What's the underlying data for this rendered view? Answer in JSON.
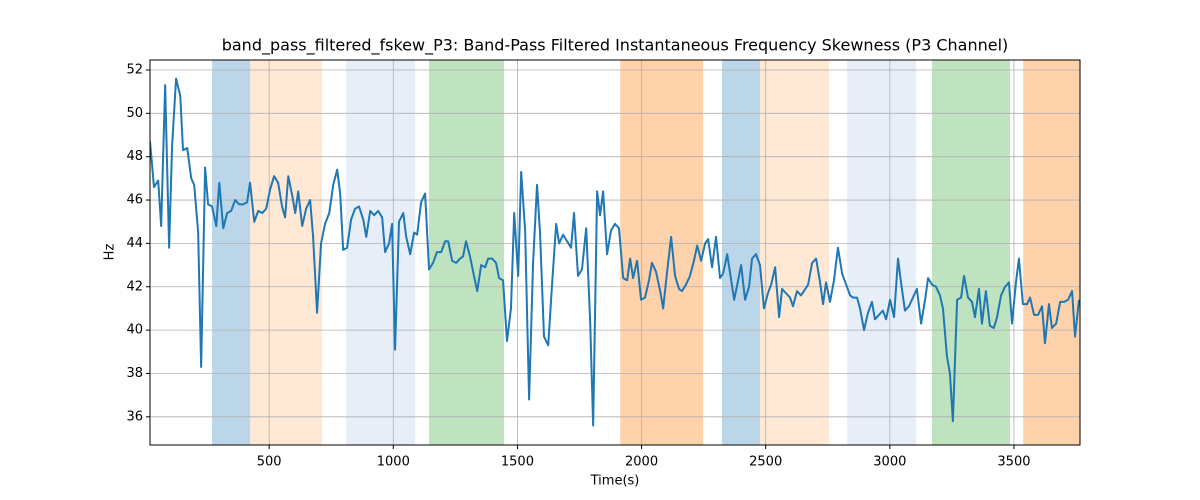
{
  "chart_data": {
    "type": "line",
    "title": "band_pass_filtered_fskew_P3: Band-Pass Filtered Instantaneous Frequency Skewness (P3 Channel)",
    "xlabel": "Time(s)",
    "ylabel": "Hz",
    "color": "#1f77b4",
    "x": [
      20,
      36,
      53,
      65,
      81,
      97,
      109,
      125,
      142,
      153,
      170,
      186,
      198,
      214,
      226,
      242,
      254,
      270,
      287,
      299,
      315,
      331,
      347,
      363,
      379,
      395,
      411,
      423,
      440,
      456,
      472,
      488,
      504,
      520,
      536,
      552,
      564,
      577,
      593,
      605,
      617,
      633,
      649,
      665,
      677,
      693,
      709,
      725,
      742,
      758,
      774,
      786,
      798,
      814,
      830,
      846,
      862,
      879,
      891,
      907,
      923,
      939,
      955,
      967,
      983,
      995,
      1007,
      1023,
      1040,
      1052,
      1068,
      1084,
      1096,
      1112,
      1128,
      1144,
      1160,
      1176,
      1193,
      1209,
      1221,
      1237,
      1253,
      1269,
      1281,
      1293,
      1309,
      1325,
      1338,
      1354,
      1370,
      1382,
      1398,
      1414,
      1426,
      1442,
      1458,
      1474,
      1487,
      1503,
      1515,
      1531,
      1547,
      1563,
      1579,
      1591,
      1607,
      1624,
      1640,
      1656,
      1668,
      1684,
      1700,
      1716,
      1728,
      1744,
      1760,
      1777,
      1793,
      1805,
      1821,
      1833,
      1845,
      1861,
      1877,
      1893,
      1909,
      1926,
      1942,
      1954,
      1966,
      1982,
      1998,
      2014,
      2030,
      2042,
      2058,
      2075,
      2087,
      2103,
      2119,
      2135,
      2151,
      2163,
      2179,
      2195,
      2211,
      2224,
      2240,
      2256,
      2268,
      2284,
      2300,
      2316,
      2328,
      2345,
      2361,
      2373,
      2389,
      2401,
      2417,
      2433,
      2445,
      2461,
      2477,
      2493,
      2509,
      2522,
      2538,
      2554,
      2566,
      2582,
      2598,
      2610,
      2626,
      2642,
      2654,
      2671,
      2687,
      2703,
      2719,
      2731,
      2743,
      2759,
      2775,
      2791,
      2808,
      2824,
      2840,
      2852,
      2868,
      2880,
      2896,
      2912,
      2928,
      2940,
      2956,
      2972,
      2985,
      3001,
      3017,
      3033,
      3045,
      3061,
      3077,
      3093,
      3109,
      3126,
      3142,
      3154,
      3170,
      3186,
      3202,
      3214,
      3230,
      3242,
      3254,
      3271,
      3287,
      3299,
      3315,
      3331,
      3343,
      3359,
      3371,
      3387,
      3403,
      3419,
      3432,
      3448,
      3464,
      3480,
      3492,
      3508,
      3520,
      3536,
      3553,
      3565,
      3581,
      3597,
      3613,
      3625,
      3641,
      3653,
      3670,
      3686,
      3702,
      3718,
      3734,
      3746,
      3762
    ],
    "values": [
      48.7,
      46.6,
      46.9,
      44.8,
      51.3,
      43.8,
      48.5,
      51.6,
      50.8,
      48.3,
      48.4,
      47.0,
      46.7,
      44.5,
      38.3,
      47.5,
      45.8,
      45.7,
      44.8,
      46.8,
      44.7,
      45.4,
      45.5,
      46.0,
      45.8,
      45.8,
      45.9,
      46.8,
      45.0,
      45.5,
      45.4,
      45.6,
      46.5,
      47.1,
      46.8,
      45.7,
      45.2,
      47.1,
      46.2,
      45.4,
      46.4,
      44.8,
      45.6,
      46.0,
      44.3,
      40.8,
      44.0,
      44.9,
      45.4,
      46.7,
      47.4,
      46.3,
      43.7,
      43.8,
      45.1,
      45.6,
      45.7,
      45.1,
      44.3,
      45.5,
      45.3,
      45.5,
      45.2,
      43.6,
      44.0,
      44.9,
      39.1,
      45.0,
      45.4,
      44.3,
      43.5,
      44.5,
      44.4,
      45.9,
      46.3,
      42.8,
      43.1,
      43.6,
      43.6,
      44.1,
      44.1,
      43.2,
      43.1,
      43.3,
      43.4,
      44.1,
      43.4,
      42.5,
      41.8,
      43.0,
      42.9,
      43.3,
      43.3,
      43.1,
      42.4,
      42.3,
      39.5,
      41.0,
      45.4,
      42.5,
      47.3,
      44.6,
      36.8,
      43.1,
      46.7,
      44.5,
      39.7,
      39.3,
      42.2,
      44.9,
      44.0,
      44.4,
      44.1,
      43.8,
      45.4,
      42.5,
      42.8,
      44.7,
      40.4,
      35.6,
      46.4,
      45.3,
      46.4,
      43.5,
      44.6,
      44.9,
      44.7,
      42.4,
      42.3,
      43.3,
      42.4,
      43.2,
      41.4,
      41.5,
      42.3,
      43.1,
      42.7,
      41.8,
      41.0,
      42.7,
      44.3,
      42.5,
      41.9,
      41.8,
      42.1,
      42.5,
      43.2,
      43.9,
      43.2,
      44.0,
      44.2,
      42.9,
      44.3,
      42.4,
      42.6,
      43.5,
      42.3,
      41.4,
      42.3,
      43.0,
      41.4,
      42.0,
      43.3,
      43.5,
      43.0,
      41.0,
      41.7,
      42.1,
      42.9,
      40.6,
      41.9,
      41.7,
      41.5,
      41.1,
      41.8,
      41.6,
      41.8,
      42.1,
      43.1,
      43.3,
      42.2,
      41.2,
      42.2,
      41.3,
      42.3,
      43.8,
      42.6,
      42.1,
      41.6,
      41.5,
      41.5,
      41.0,
      40.0,
      40.8,
      41.3,
      40.5,
      40.7,
      40.9,
      40.5,
      41.4,
      40.6,
      43.3,
      42.2,
      40.9,
      41.1,
      41.5,
      41.9,
      40.3,
      41.4,
      42.4,
      42.1,
      42.0,
      41.6,
      41.0,
      38.8,
      38.0,
      35.8,
      41.4,
      41.5,
      42.5,
      41.5,
      41.3,
      40.6,
      41.9,
      40.3,
      41.8,
      40.2,
      40.1,
      40.6,
      41.6,
      42.0,
      42.2,
      40.3,
      42.2,
      43.3,
      41.2,
      41.2,
      41.5,
      40.7,
      40.7,
      41.1,
      39.4,
      41.2,
      40.1,
      40.3,
      41.3,
      41.3,
      41.4,
      41.8,
      39.7,
      41.4
    ],
    "bands": [
      {
        "start": 270,
        "end": 423,
        "color": "rgba(31,119,180,0.3)"
      },
      {
        "start": 423,
        "end": 713,
        "color": "rgba(255,127,14,0.18)"
      },
      {
        "start": 810,
        "end": 1088,
        "color": "rgba(174,199,232,0.3)"
      },
      {
        "start": 1144,
        "end": 1446,
        "color": "rgba(44,160,44,0.3)"
      },
      {
        "start": 1914,
        "end": 2248,
        "color": "rgba(255,127,14,0.35)"
      },
      {
        "start": 2324,
        "end": 2477,
        "color": "rgba(31,119,180,0.3)"
      },
      {
        "start": 2477,
        "end": 2755,
        "color": "rgba(255,127,14,0.18)"
      },
      {
        "start": 2828,
        "end": 3106,
        "color": "rgba(174,199,232,0.3)"
      },
      {
        "start": 3170,
        "end": 3484,
        "color": "rgba(44,160,44,0.3)"
      },
      {
        "start": 3537,
        "end": 3766,
        "color": "rgba(255,127,14,0.35)"
      }
    ],
    "xlim": [
      20,
      3766
    ],
    "ylim": [
      34.7,
      52.46
    ],
    "xticks": [
      500,
      1000,
      1500,
      2000,
      2500,
      3000,
      3500
    ],
    "yticks": [
      36,
      38,
      40,
      42,
      44,
      46,
      48,
      50,
      52
    ],
    "grid": true
  }
}
